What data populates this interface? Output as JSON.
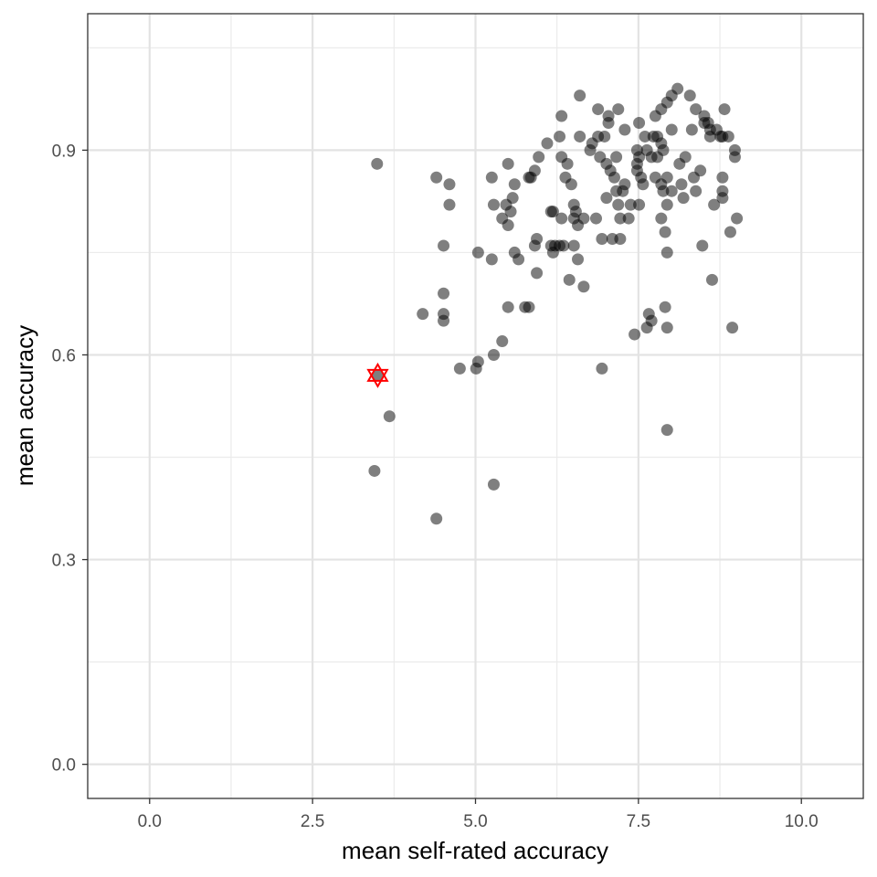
{
  "chart_data": {
    "type": "scatter",
    "title": "",
    "xlabel": "mean self-rated accuracy",
    "ylabel": "mean accuracy",
    "xlim": [
      -0.95,
      10.95
    ],
    "ylim": [
      -0.05,
      1.1
    ],
    "x_ticks": [
      0.0,
      2.5,
      5.0,
      7.5,
      10.0
    ],
    "x_tick_labels": [
      "0.0",
      "2.5",
      "5.0",
      "7.5",
      "10.0"
    ],
    "x_minor_ticks": [
      1.25,
      3.75,
      6.25,
      8.75
    ],
    "y_ticks": [
      0.0,
      0.3,
      0.6,
      0.9
    ],
    "y_tick_labels": [
      "0.0",
      "0.3",
      "0.6",
      "0.9"
    ],
    "y_minor_ticks": [
      0.15,
      0.45,
      0.75,
      1.05
    ],
    "grid": true,
    "point_color": "#000000",
    "point_opacity": 0.5,
    "highlight_color": "#ff0000",
    "series": [
      {
        "points": [
          [
            3.49,
            0.88
          ],
          [
            3.68,
            0.51
          ],
          [
            3.45,
            0.43
          ],
          [
            4.19,
            0.66
          ],
          [
            4.4,
            0.86
          ],
          [
            4.4,
            0.36
          ],
          [
            4.51,
            0.76
          ],
          [
            4.51,
            0.69
          ],
          [
            4.51,
            0.66
          ],
          [
            4.51,
            0.65
          ],
          [
            4.6,
            0.85
          ],
          [
            4.6,
            0.82
          ],
          [
            4.76,
            0.58
          ],
          [
            5.01,
            0.58
          ],
          [
            5.04,
            0.59
          ],
          [
            5.04,
            0.75
          ],
          [
            5.25,
            0.86
          ],
          [
            5.25,
            0.74
          ],
          [
            5.28,
            0.82
          ],
          [
            5.28,
            0.6
          ],
          [
            5.28,
            0.41
          ],
          [
            5.41,
            0.62
          ],
          [
            5.41,
            0.8
          ],
          [
            5.47,
            0.82
          ],
          [
            5.5,
            0.88
          ],
          [
            5.5,
            0.79
          ],
          [
            5.5,
            0.67
          ],
          [
            5.54,
            0.81
          ],
          [
            5.57,
            0.83
          ],
          [
            5.6,
            0.85
          ],
          [
            5.6,
            0.75
          ],
          [
            5.66,
            0.74
          ],
          [
            5.76,
            0.67
          ],
          [
            5.82,
            0.67
          ],
          [
            5.82,
            0.86
          ],
          [
            5.85,
            0.86
          ],
          [
            5.91,
            0.76
          ],
          [
            5.91,
            0.87
          ],
          [
            5.94,
            0.77
          ],
          [
            5.94,
            0.72
          ],
          [
            5.97,
            0.89
          ],
          [
            6.1,
            0.91
          ],
          [
            6.16,
            0.76
          ],
          [
            6.16,
            0.81
          ],
          [
            6.19,
            0.81
          ],
          [
            6.19,
            0.75
          ],
          [
            6.22,
            0.76
          ],
          [
            6.29,
            0.76
          ],
          [
            6.29,
            0.92
          ],
          [
            6.32,
            0.95
          ],
          [
            6.32,
            0.89
          ],
          [
            6.32,
            0.8
          ],
          [
            6.35,
            0.76
          ],
          [
            6.38,
            0.86
          ],
          [
            6.41,
            0.88
          ],
          [
            6.44,
            0.71
          ],
          [
            6.47,
            0.85
          ],
          [
            6.51,
            0.82
          ],
          [
            6.51,
            0.8
          ],
          [
            6.51,
            0.76
          ],
          [
            6.54,
            0.81
          ],
          [
            6.57,
            0.74
          ],
          [
            6.57,
            0.79
          ],
          [
            6.6,
            0.98
          ],
          [
            6.6,
            0.92
          ],
          [
            6.66,
            0.7
          ],
          [
            6.66,
            0.8
          ],
          [
            6.76,
            0.9
          ],
          [
            6.79,
            0.91
          ],
          [
            6.85,
            0.8
          ],
          [
            6.88,
            0.96
          ],
          [
            6.88,
            0.92
          ],
          [
            6.91,
            0.89
          ],
          [
            6.94,
            0.77
          ],
          [
            6.94,
            0.58
          ],
          [
            6.98,
            0.92
          ],
          [
            7.01,
            0.88
          ],
          [
            7.01,
            0.83
          ],
          [
            7.04,
            0.94
          ],
          [
            7.04,
            0.95
          ],
          [
            7.07,
            0.87
          ],
          [
            7.1,
            0.77
          ],
          [
            7.13,
            0.86
          ],
          [
            7.16,
            0.84
          ],
          [
            7.16,
            0.89
          ],
          [
            7.19,
            0.96
          ],
          [
            7.19,
            0.82
          ],
          [
            7.22,
            0.8
          ],
          [
            7.22,
            0.77
          ],
          [
            7.26,
            0.84
          ],
          [
            7.29,
            0.93
          ],
          [
            7.29,
            0.85
          ],
          [
            7.35,
            0.8
          ],
          [
            7.38,
            0.82
          ],
          [
            7.44,
            0.63
          ],
          [
            7.48,
            0.9
          ],
          [
            7.48,
            0.88
          ],
          [
            7.48,
            0.87
          ],
          [
            7.51,
            0.94
          ],
          [
            7.51,
            0.89
          ],
          [
            7.51,
            0.82
          ],
          [
            7.54,
            0.86
          ],
          [
            7.57,
            0.85
          ],
          [
            7.6,
            0.92
          ],
          [
            7.63,
            0.9
          ],
          [
            7.63,
            0.64
          ],
          [
            7.66,
            0.66
          ],
          [
            7.7,
            0.89
          ],
          [
            7.7,
            0.65
          ],
          [
            7.73,
            0.92
          ],
          [
            7.76,
            0.95
          ],
          [
            7.76,
            0.86
          ],
          [
            7.79,
            0.92
          ],
          [
            7.79,
            0.89
          ],
          [
            7.85,
            0.85
          ],
          [
            7.85,
            0.8
          ],
          [
            7.85,
            0.91
          ],
          [
            7.85,
            0.96
          ],
          [
            7.88,
            0.84
          ],
          [
            7.88,
            0.9
          ],
          [
            7.91,
            0.78
          ],
          [
            7.91,
            0.67
          ],
          [
            7.94,
            0.97
          ],
          [
            7.94,
            0.86
          ],
          [
            7.94,
            0.82
          ],
          [
            7.94,
            0.75
          ],
          [
            7.94,
            0.64
          ],
          [
            7.94,
            0.49
          ],
          [
            8.01,
            0.93
          ],
          [
            8.01,
            0.98
          ],
          [
            8.01,
            0.84
          ],
          [
            8.1,
            0.99
          ],
          [
            8.13,
            0.88
          ],
          [
            8.16,
            0.85
          ],
          [
            8.19,
            0.83
          ],
          [
            8.22,
            0.89
          ],
          [
            8.29,
            0.98
          ],
          [
            8.32,
            0.93
          ],
          [
            8.35,
            0.86
          ],
          [
            8.38,
            0.96
          ],
          [
            8.38,
            0.84
          ],
          [
            8.45,
            0.87
          ],
          [
            8.48,
            0.76
          ],
          [
            8.51,
            0.95
          ],
          [
            8.51,
            0.94
          ],
          [
            8.57,
            0.94
          ],
          [
            8.6,
            0.93
          ],
          [
            8.6,
            0.92
          ],
          [
            8.63,
            0.71
          ],
          [
            8.66,
            0.82
          ],
          [
            8.7,
            0.93
          ],
          [
            8.76,
            0.92
          ],
          [
            8.79,
            0.92
          ],
          [
            8.79,
            0.84
          ],
          [
            8.79,
            0.86
          ],
          [
            8.79,
            0.83
          ],
          [
            8.82,
            0.96
          ],
          [
            8.88,
            0.92
          ],
          [
            8.91,
            0.78
          ],
          [
            8.94,
            0.64
          ],
          [
            8.98,
            0.89
          ],
          [
            8.98,
            0.9
          ],
          [
            9.01,
            0.8
          ]
        ]
      },
      {
        "points": [
          [
            3.5,
            0.57
          ]
        ],
        "marker": "star-of-david"
      }
    ]
  }
}
